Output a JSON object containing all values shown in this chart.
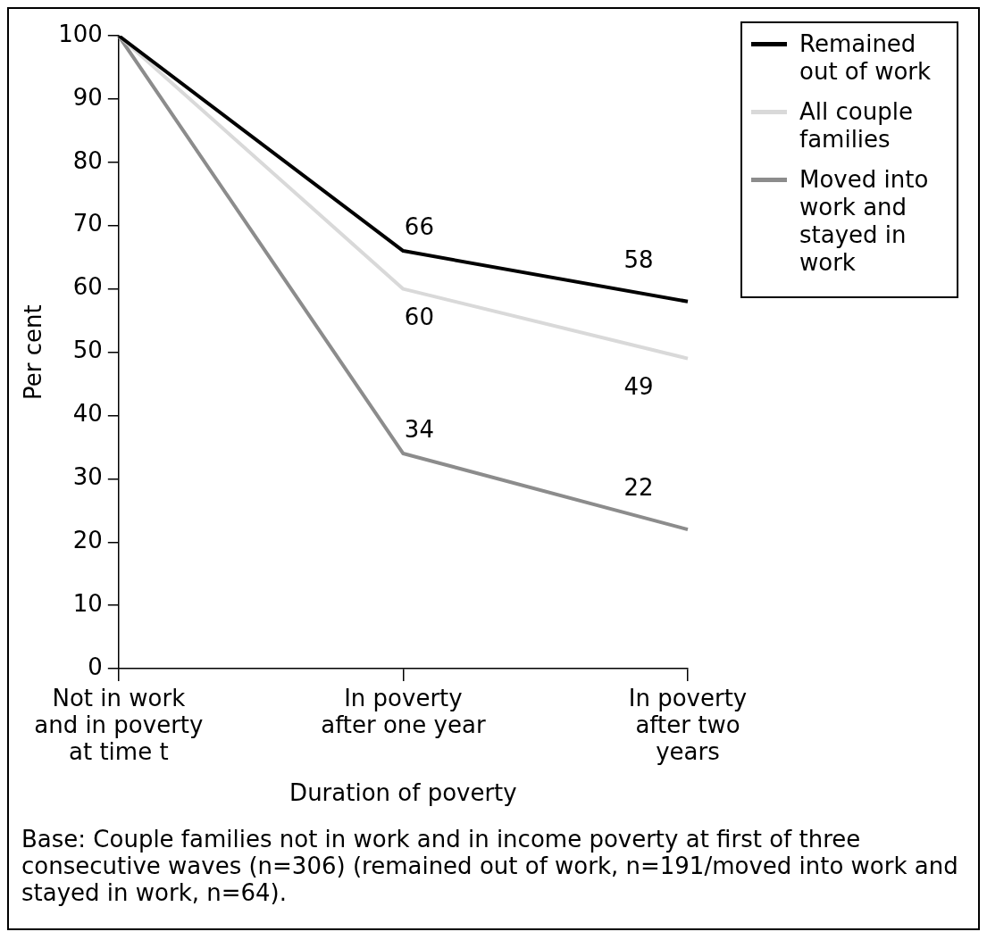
{
  "chart_data": {
    "type": "line",
    "xlabel": "Duration of poverty",
    "ylabel": "Per cent",
    "categories": [
      "Not in work and in poverty at time t",
      "In poverty after one year",
      "In poverty after two years"
    ],
    "series": [
      {
        "name": "Remained out of work",
        "color": "#000000",
        "values": [
          100,
          66,
          58
        ],
        "value_labels": [
          null,
          "66",
          "58"
        ]
      },
      {
        "name": "All couple families",
        "color": "#d9d9d9",
        "values": [
          100,
          60,
          49
        ],
        "value_labels": [
          null,
          "60",
          "49"
        ]
      },
      {
        "name": "Moved into work and stayed in work",
        "color": "#8c8c8c",
        "values": [
          100,
          34,
          22
        ],
        "value_labels": [
          null,
          "34",
          "22"
        ]
      }
    ],
    "ylim": [
      0,
      100
    ],
    "yticks": [
      0,
      10,
      20,
      30,
      40,
      50,
      60,
      70,
      80,
      90,
      100
    ],
    "grid": false,
    "legend": "top right",
    "marker": "none",
    "line_style": "solid",
    "annotations": [
      "Base: Couple families not in work and in income poverty at first of three consecutive waves (n=306) (remained out of work, n=191/moved into work and stayed in work, n=64)."
    ]
  }
}
